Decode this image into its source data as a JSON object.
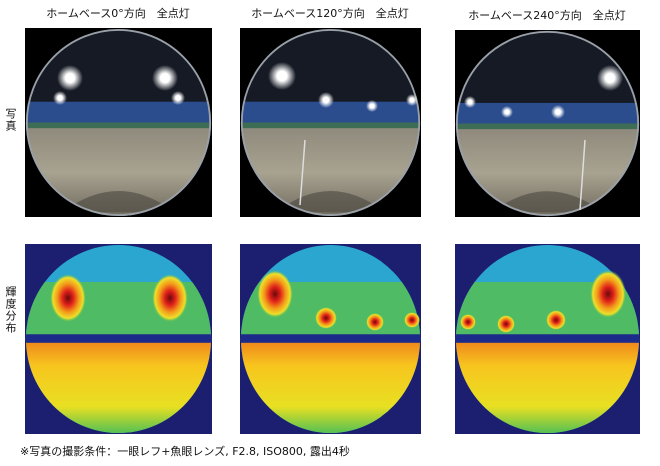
{
  "columns": [
    {
      "label": "ホームベース0°方向　全点灯"
    },
    {
      "label": "ホームベース120°方向　全点灯"
    },
    {
      "label": "ホームベース240°方向　全点灯"
    }
  ],
  "rows": [
    {
      "label": "写真"
    },
    {
      "label": "輝度分布"
    }
  ],
  "caption": "※写真の撮影条件：一眼レフ+魚眼レンズ, F2.8, ISO800, 露出4秒"
}
